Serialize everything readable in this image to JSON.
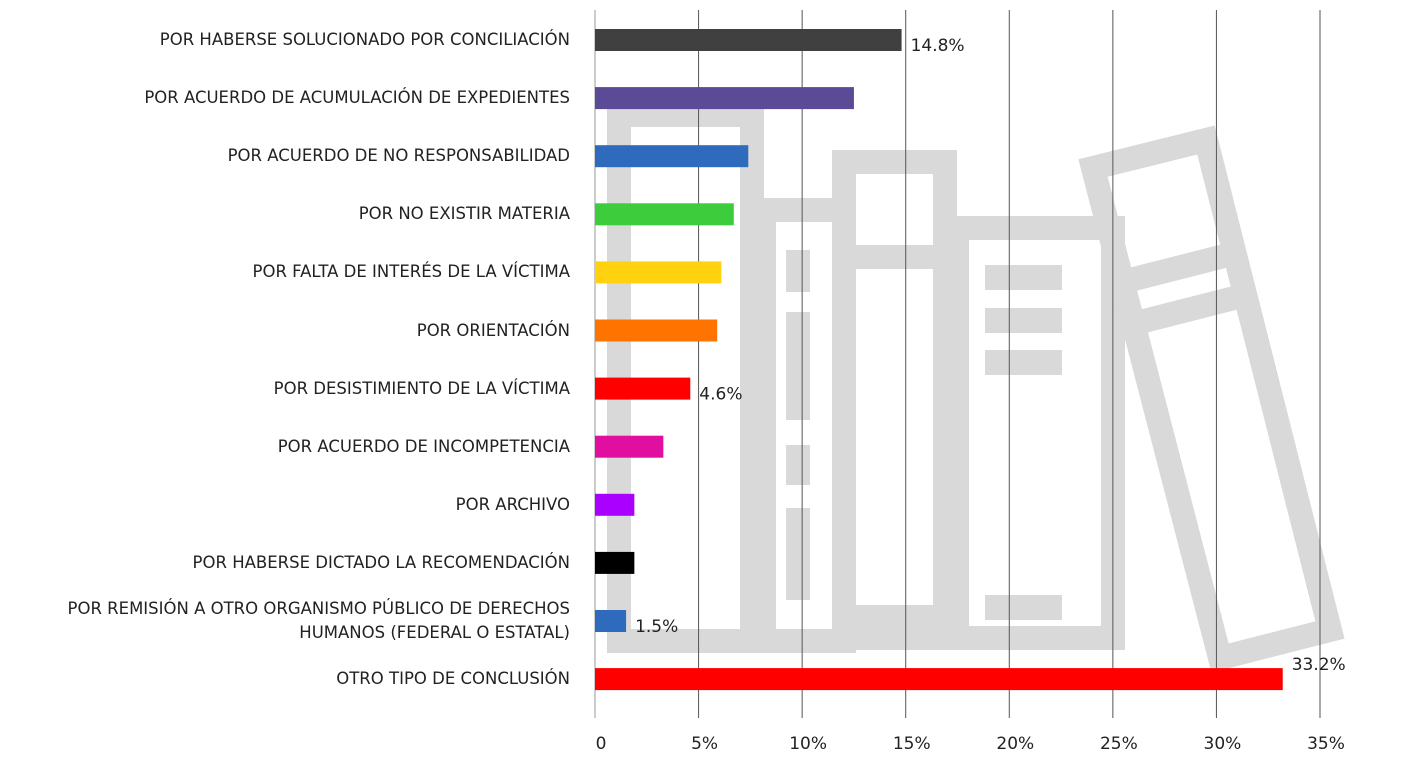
{
  "chart_data": {
    "type": "hbar",
    "categories": [
      "POR HABERSE SOLUCIONADO POR CONCILIACIÓN",
      "POR ACUERDO DE ACUMULACIÓN DE EXPEDIENTES",
      "POR ACUERDO DE NO RESPONSABILIDAD",
      "POR NO EXISTIR MATERIA",
      "POR FALTA DE INTERÉS DE LA VÍCTIMA",
      "POR ORIENTACIÓN",
      "POR DESISTIMIENTO DE LA VÍCTIMA",
      "POR ACUERDO DE INCOMPETENCIA",
      "POR ARCHIVO",
      "POR HABERSE DICTADO LA RECOMENDACIÓN",
      "POR REMISIÓN A OTRO ORGANISMO PÚBLICO DE DERECHOS\nHUMANOS (FEDERAL O ESTATAL)",
      "OTRO TIPO DE CONCLUSIÓN"
    ],
    "values": [
      14.8,
      12.5,
      7.4,
      6.7,
      6.1,
      5.9,
      4.6,
      3.3,
      1.9,
      1.9,
      1.5,
      33.2
    ],
    "value_labels": [
      "14.8%",
      null,
      null,
      null,
      null,
      null,
      "4.6%",
      null,
      null,
      null,
      "1.5%",
      "33.2%"
    ],
    "colors": [
      "#404040",
      "#5b4a96",
      "#2e6bbd",
      "#3ccc3c",
      "#ffd10f",
      "#ff7300",
      "#ff0000",
      "#e00fa0",
      "#aa00ff",
      "#000000",
      "#2e6bbd",
      "#ff0000"
    ],
    "xlim": [
      0,
      35
    ],
    "xticks": [
      0,
      {
        "value": 5,
        "label": "5%"
      },
      {
        "value": 10,
        "label": "10%"
      },
      {
        "value": 15,
        "label": "15%"
      },
      {
        "value": 20,
        "label": "20%"
      },
      {
        "value": 25,
        "label": "25%"
      },
      {
        "value": 30,
        "label": "30%"
      },
      {
        "value": 35,
        "label": "35%"
      }
    ],
    "grid": true
  }
}
